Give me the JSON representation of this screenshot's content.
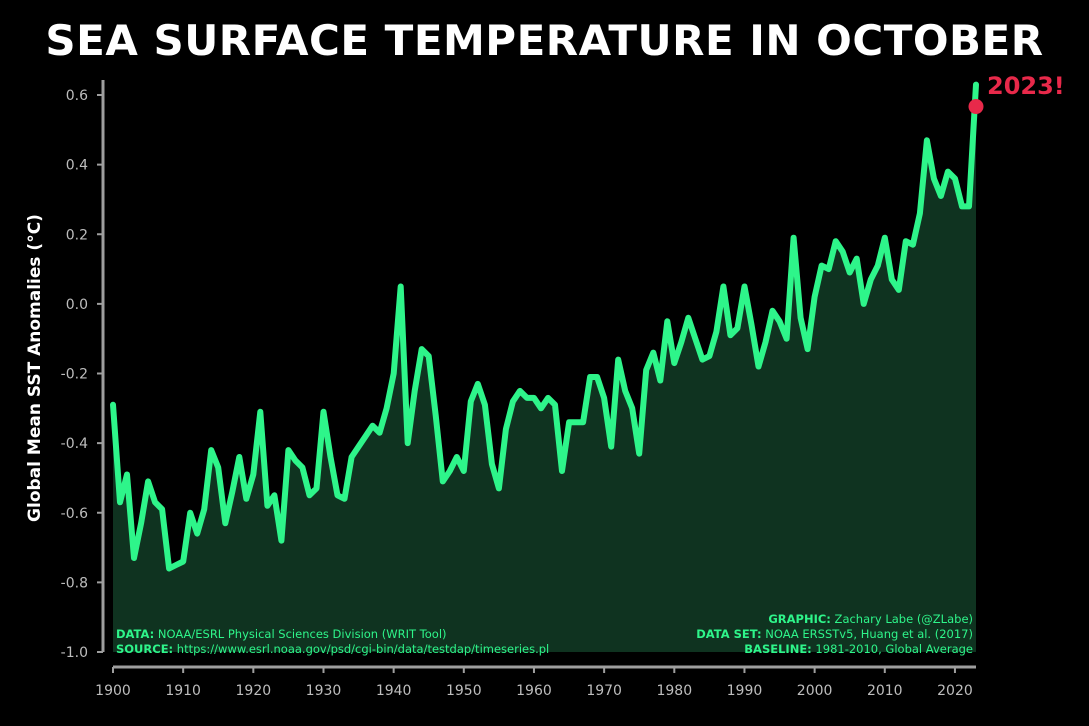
{
  "colors": {
    "background": "#000000",
    "line": "#2ef58a",
    "fill": "#0f3320",
    "axis": "#9e9e9e",
    "highlight": "#e8294a"
  },
  "credits": {
    "data_key": "DATA:",
    "data_val": " NOAA/ESRL Physical Sciences Division (WRIT Tool)",
    "source_key": "SOURCE:",
    "source_val": " https://www.esrl.noaa.gov/psd/cgi-bin/data/testdap/timeseries.pl",
    "graphic_key": "GRAPHIC:",
    "graphic_val": " Zachary Labe (@ZLabe)",
    "dataset_key": "DATA SET:",
    "dataset_val": " NOAA ERSSTv5, Huang et al. (2017)",
    "baseline_key": "BASELINE:",
    "baseline_val": " 1981-2010, Global Average"
  },
  "chart_data": {
    "type": "area",
    "title": "SEA SURFACE TEMPERATURE IN OCTOBER",
    "xlabel": "",
    "ylabel": "Global Mean SST Anomalies (°C)",
    "xlim": [
      1900,
      2023
    ],
    "ylim": [
      -1.0,
      0.6
    ],
    "xticks": [
      1900,
      1910,
      1920,
      1930,
      1940,
      1950,
      1960,
      1970,
      1980,
      1990,
      2000,
      2010,
      2020
    ],
    "yticks": [
      "-1.0",
      "-0.8",
      "-0.6",
      "-0.4",
      "-0.2",
      "0.0",
      "0.2",
      "0.4",
      "0.6"
    ],
    "grid": false,
    "annotation": {
      "label": "2023!",
      "x": 2023,
      "y": 0.63
    },
    "series": [
      {
        "x_start": 1900,
        "x_step": 1,
        "values": [
          -0.29,
          -0.57,
          -0.49,
          -0.73,
          -0.63,
          -0.51,
          -0.57,
          -0.59,
          -0.76,
          -0.75,
          -0.74,
          -0.6,
          -0.66,
          -0.59,
          -0.42,
          -0.47,
          -0.63,
          -0.54,
          -0.44,
          -0.56,
          -0.49,
          -0.31,
          -0.58,
          -0.55,
          -0.68,
          -0.42,
          -0.45,
          -0.47,
          -0.55,
          -0.53,
          -0.31,
          -0.44,
          -0.55,
          -0.56,
          -0.44,
          -0.41,
          -0.38,
          -0.35,
          -0.37,
          -0.3,
          -0.2,
          0.05,
          -0.4,
          -0.25,
          -0.13,
          -0.15,
          -0.32,
          -0.51,
          -0.48,
          -0.44,
          -0.48,
          -0.28,
          -0.23,
          -0.29,
          -0.46,
          -0.53,
          -0.36,
          -0.28,
          -0.25,
          -0.27,
          -0.27,
          -0.3,
          -0.27,
          -0.29,
          -0.48,
          -0.34,
          -0.34,
          -0.34,
          -0.21,
          -0.21,
          -0.27,
          -0.41,
          -0.16,
          -0.25,
          -0.3,
          -0.43,
          -0.19,
          -0.14,
          -0.22,
          -0.05,
          -0.17,
          -0.11,
          -0.04,
          -0.1,
          -0.16,
          -0.15,
          -0.08,
          0.05,
          -0.09,
          -0.07,
          0.05,
          -0.06,
          -0.18,
          -0.11,
          -0.02,
          -0.05,
          -0.1,
          0.19,
          -0.04,
          -0.13,
          0.02,
          0.11,
          0.1,
          0.18,
          0.15,
          0.09,
          0.13,
          0.0,
          0.07,
          0.11,
          0.19,
          0.07,
          0.04,
          0.18,
          0.17,
          0.26,
          0.47,
          0.36,
          0.31,
          0.38,
          0.36,
          0.28,
          0.28,
          0.63
        ]
      }
    ]
  }
}
